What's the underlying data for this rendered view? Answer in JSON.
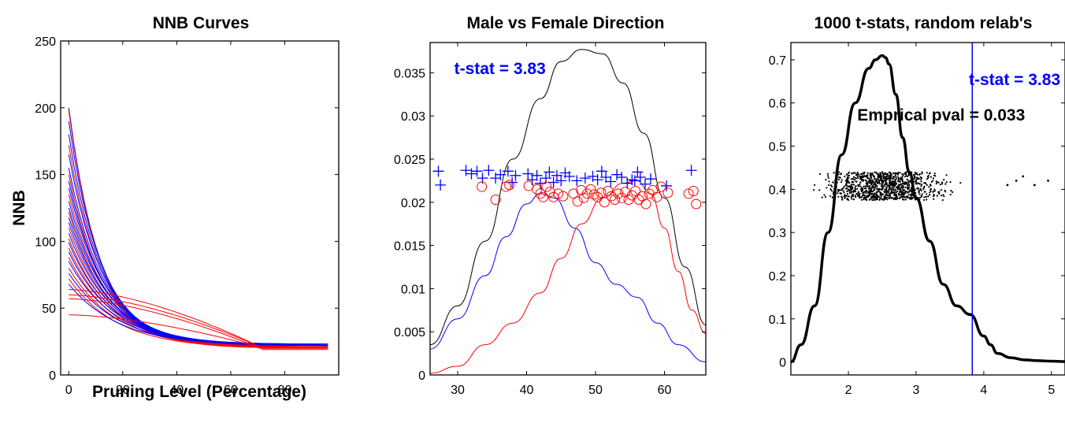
{
  "chart_data": [
    {
      "type": "line",
      "title": "NNB Curves",
      "xlabel": "Pruning Level (Percentage)",
      "ylabel": "NNB",
      "xlim": [
        -3,
        100
      ],
      "ylim": [
        0,
        250
      ],
      "xticks": [
        "0",
        "20",
        "40",
        "60",
        "80"
      ],
      "yticks": [
        "0",
        "50",
        "100",
        "150",
        "200",
        "250"
      ],
      "series_colors": [
        "#0000ff",
        "#ff0000"
      ],
      "note": "Many overlapping decay curves from each start value down to about 20 at 97; blue and red curves interleaved",
      "curves": [
        {
          "color": "#0000ff",
          "start": 200,
          "end": 22
        },
        {
          "color": "#ff0000",
          "start": 198,
          "end": 21
        },
        {
          "color": "#0000ff",
          "start": 190,
          "end": 23
        },
        {
          "color": "#0000ff",
          "start": 180,
          "end": 22
        },
        {
          "color": "#ff0000",
          "start": 172,
          "end": 21
        },
        {
          "color": "#0000ff",
          "start": 165,
          "end": 23
        },
        {
          "color": "#0000ff",
          "start": 155,
          "end": 22
        },
        {
          "color": "#ff0000",
          "start": 150,
          "end": 20
        },
        {
          "color": "#0000ff",
          "start": 145,
          "end": 22
        },
        {
          "color": "#0000ff",
          "start": 140,
          "end": 23
        },
        {
          "color": "#ff0000",
          "start": 135,
          "end": 21
        },
        {
          "color": "#0000ff",
          "start": 130,
          "end": 22
        },
        {
          "color": "#0000ff",
          "start": 125,
          "end": 23
        },
        {
          "color": "#ff0000",
          "start": 122,
          "end": 20
        },
        {
          "color": "#0000ff",
          "start": 118,
          "end": 22
        },
        {
          "color": "#0000ff",
          "start": 114,
          "end": 22
        },
        {
          "color": "#ff0000",
          "start": 110,
          "end": 21
        },
        {
          "color": "#0000ff",
          "start": 106,
          "end": 22
        },
        {
          "color": "#ff0000",
          "start": 102,
          "end": 20
        },
        {
          "color": "#0000ff",
          "start": 99,
          "end": 22
        },
        {
          "color": "#ff0000",
          "start": 95,
          "end": 21
        },
        {
          "color": "#0000ff",
          "start": 92,
          "end": 22
        },
        {
          "color": "#ff0000",
          "start": 88,
          "end": 20
        },
        {
          "color": "#0000ff",
          "start": 85,
          "end": 22
        },
        {
          "color": "#ff0000",
          "start": 80,
          "end": 21
        },
        {
          "color": "#0000ff",
          "start": 76,
          "end": 22
        },
        {
          "color": "#ff0000",
          "start": 72,
          "end": 20
        },
        {
          "color": "#0000ff",
          "start": 68,
          "end": 22
        },
        {
          "color": "#ff0000",
          "start": 64,
          "end": 20
        },
        {
          "color": "#ff0000",
          "start": 60,
          "end": 20
        },
        {
          "color": "#ff0000",
          "start": 57,
          "end": 19
        },
        {
          "color": "#ff0000",
          "start": 45,
          "end": 20
        }
      ]
    },
    {
      "type": "line",
      "title": "Male vs Female Direction",
      "xlim": [
        26,
        66
      ],
      "ylim": [
        0,
        0.0385
      ],
      "xticks": [
        "30",
        "40",
        "50",
        "60"
      ],
      "yticks": [
        "0",
        "0.005",
        "0.01",
        "0.015",
        "0.02",
        "0.025",
        "0.03",
        "0.035"
      ],
      "annotation": {
        "text": "t-stat = 3.83",
        "color": "#0000ff",
        "x": 29.5,
        "y": 0.0355
      },
      "series": [
        {
          "color": "#000000",
          "x": [
            26,
            30,
            34,
            38,
            42,
            45,
            48,
            51,
            54,
            57,
            60,
            63,
            66
          ],
          "y": [
            0.0035,
            0.008,
            0.0155,
            0.025,
            0.032,
            0.0363,
            0.0377,
            0.0372,
            0.0338,
            0.028,
            0.0205,
            0.0125,
            0.0058
          ]
        },
        {
          "color": "#0000ff",
          "x": [
            26,
            30,
            34,
            37,
            40,
            42,
            44,
            47,
            50,
            53,
            56,
            59,
            62,
            66
          ],
          "y": [
            0.003,
            0.0065,
            0.0115,
            0.016,
            0.0198,
            0.021,
            0.0205,
            0.017,
            0.013,
            0.0105,
            0.009,
            0.006,
            0.0035,
            0.0015
          ]
        },
        {
          "color": "#ff0000",
          "x": [
            26,
            30,
            34,
            38,
            42,
            45,
            48,
            51,
            54,
            56,
            58,
            60,
            62,
            64,
            66
          ],
          "y": [
            0.0002,
            0.001,
            0.0035,
            0.006,
            0.0095,
            0.0135,
            0.0175,
            0.0205,
            0.0222,
            0.0225,
            0.021,
            0.017,
            0.012,
            0.0075,
            0.0048
          ]
        }
      ],
      "male_points": {
        "marker": "+",
        "color": "#0000ff",
        "x": [
          27.2,
          27.5,
          31.2,
          32,
          32.8,
          33.6,
          34.5,
          35.5,
          36.2,
          37.3,
          37.9,
          38.4,
          40.2,
          40.8,
          41.5,
          42,
          42.8,
          43.3,
          43.9,
          44.4,
          45,
          45.6,
          46.2,
          47.3,
          48.5,
          49.6,
          50.3,
          50.9,
          51.5,
          52.2,
          53.1,
          53.8,
          54.6,
          55.3,
          55.7,
          56.1,
          56.5,
          57.2,
          58,
          60.3,
          63.9
        ],
        "y": [
          0.0236,
          0.022,
          0.0237,
          0.0233,
          0.0236,
          0.0228,
          0.0237,
          0.0228,
          0.0232,
          0.0236,
          0.0223,
          0.0231,
          0.0233,
          0.0226,
          0.0231,
          0.0222,
          0.0228,
          0.0235,
          0.0223,
          0.0231,
          0.0225,
          0.0234,
          0.023,
          0.0225,
          0.0228,
          0.023,
          0.0226,
          0.0236,
          0.0229,
          0.0224,
          0.0232,
          0.0229,
          0.0222,
          0.0226,
          0.0225,
          0.0235,
          0.0229,
          0.0221,
          0.0227,
          0.0219,
          0.0237
        ]
      },
      "female_points": {
        "marker": "o",
        "color": "#ff0000",
        "x": [
          33.5,
          35.5,
          37,
          37.5,
          40.3,
          41.5,
          42,
          42.4,
          42.9,
          43.4,
          43.9,
          44.6,
          45.3,
          46.8,
          47.4,
          47.9,
          48.3,
          48.8,
          49.3,
          49.8,
          50.3,
          50.8,
          51.3,
          51.8,
          52.3,
          52.8,
          53.3,
          53.8,
          54.3,
          54.8,
          55.3,
          55.8,
          56.3,
          56.8,
          57.3,
          57.8,
          58.3,
          58.9,
          59.5,
          60.5,
          63.5,
          64.2,
          64.6
        ],
        "y": [
          0.0218,
          0.0203,
          0.0218,
          0.022,
          0.0219,
          0.0215,
          0.021,
          0.0206,
          0.0218,
          0.0212,
          0.0206,
          0.021,
          0.0207,
          0.021,
          0.0201,
          0.0214,
          0.0205,
          0.021,
          0.0215,
          0.0209,
          0.0206,
          0.0211,
          0.02,
          0.0213,
          0.0207,
          0.0203,
          0.021,
          0.0205,
          0.0212,
          0.0203,
          0.0208,
          0.0213,
          0.0203,
          0.0207,
          0.0198,
          0.021,
          0.0214,
          0.0206,
          0.0218,
          0.0211,
          0.021,
          0.0213,
          0.0198
        ]
      }
    },
    {
      "type": "line",
      "title": "1000 t-stats, random relab's",
      "xlim": [
        1.15,
        5.2
      ],
      "ylim": [
        -0.03,
        0.74
      ],
      "xticks": [
        "2",
        "3",
        "4",
        "5"
      ],
      "yticks": [
        "0",
        "0.1",
        "0.2",
        "0.3",
        "0.4",
        "0.5",
        "0.6",
        "0.7"
      ],
      "annotations": [
        {
          "text": "t-stat = 3.83",
          "color": "#0000ff",
          "x": 3.78,
          "y": 0.654
        },
        {
          "text": "Emprical pval = 0.033",
          "color": "#000000",
          "x": 2.13,
          "y": 0.572
        }
      ],
      "vline": {
        "x": 3.83,
        "color": "#0000ff"
      },
      "density": {
        "color": "#000000",
        "x": [
          1.15,
          1.3,
          1.5,
          1.7,
          1.9,
          2.1,
          2.3,
          2.4,
          2.5,
          2.55,
          2.6,
          2.7,
          2.8,
          2.9,
          3.0,
          3.2,
          3.4,
          3.6,
          3.8,
          4.0,
          4.1,
          4.2,
          4.4,
          4.6,
          4.8,
          5.0,
          5.2
        ],
        "y": [
          0.0,
          0.04,
          0.13,
          0.3,
          0.48,
          0.6,
          0.68,
          0.7,
          0.71,
          0.705,
          0.69,
          0.62,
          0.52,
          0.44,
          0.38,
          0.28,
          0.18,
          0.13,
          0.11,
          0.06,
          0.04,
          0.02,
          0.01,
          0.005,
          0.003,
          0.002,
          0.001
        ]
      },
      "scatter": {
        "color": "#000000",
        "count": 1000,
        "x_range": [
          1.3,
          4.3
        ],
        "y_range": [
          0.375,
          0.44
        ],
        "outliers_x": [
          4.35,
          4.48,
          4.58,
          4.75,
          4.95
        ]
      }
    }
  ]
}
